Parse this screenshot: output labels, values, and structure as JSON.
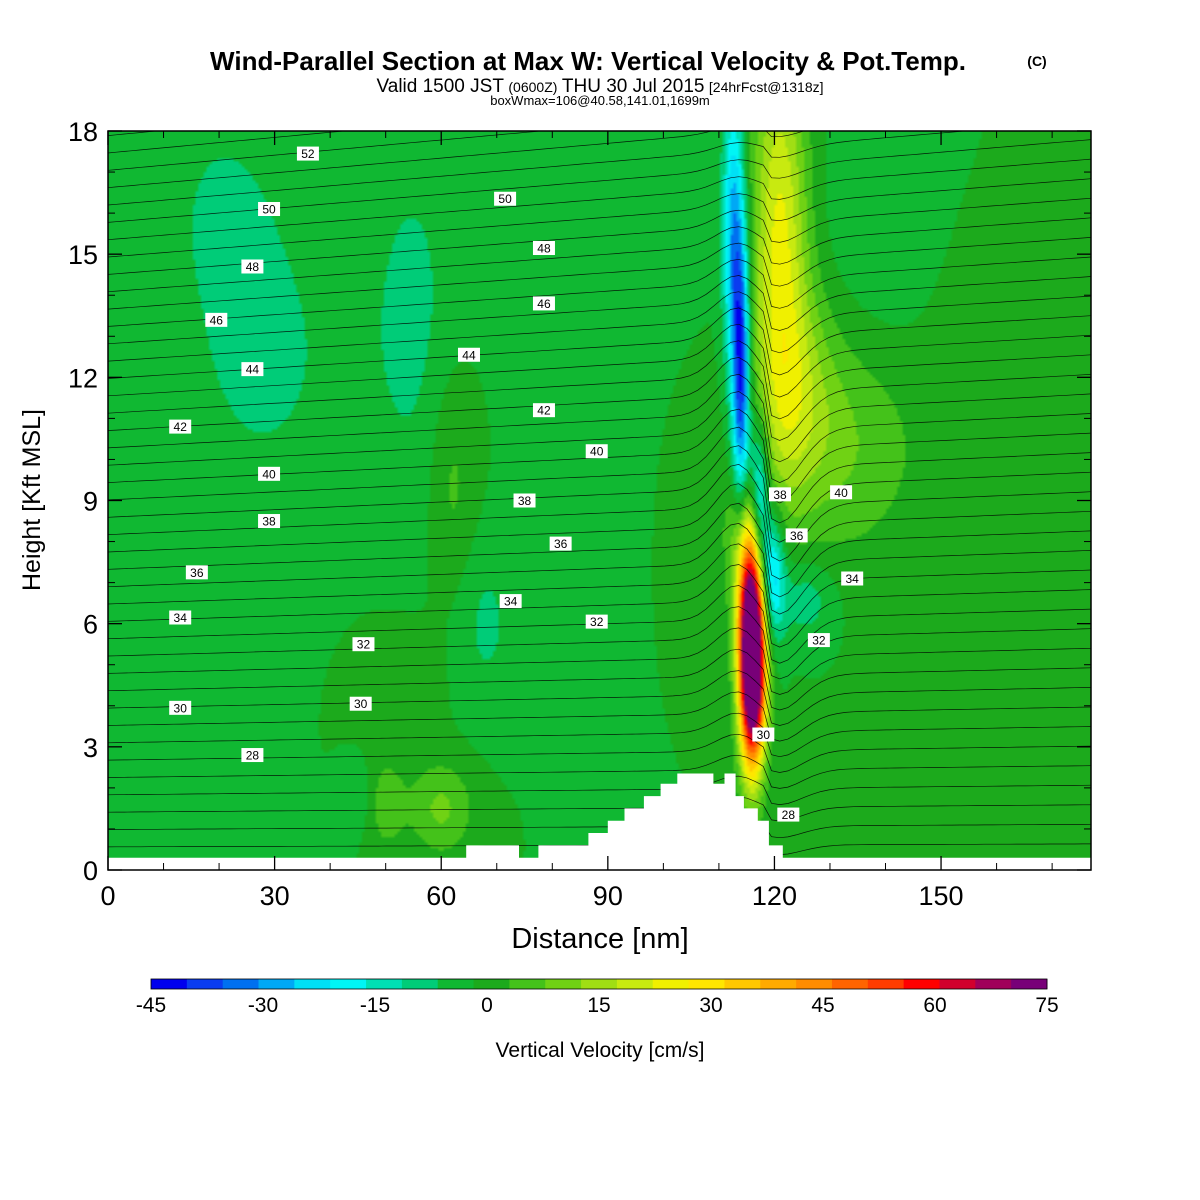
{
  "title": {
    "main": "Wind-Parallel Section at Max W: Vertical Velocity & Pot.Temp.",
    "copyright": "(C)",
    "valid_prefix": "Valid 1500 JST",
    "valid_z": "(0600Z)",
    "valid_date": "THU 30 Jul 2015",
    "forecast": "[24hrFcst@1318z]",
    "box": "boxWmax=106@40.58,141.01,1699m"
  },
  "chart_data": {
    "type": "heatmap",
    "xlabel": "Distance [nm]",
    "ylabel": "Height [Kft MSL]",
    "xlim": [
      0,
      177
    ],
    "ylim": [
      0,
      18
    ],
    "x_ticks": [
      "0",
      "30",
      "60",
      "90",
      "120",
      "150"
    ],
    "y_ticks": [
      "0",
      "3",
      "6",
      "9",
      "12",
      "15",
      "18"
    ],
    "x_tick_values": [
      0,
      30,
      60,
      90,
      120,
      150
    ],
    "y_tick_values": [
      0,
      3,
      6,
      9,
      12,
      15,
      18
    ],
    "colorbar": {
      "label": "Vertical Velocity [cm/s]",
      "tick_labels": [
        "-45",
        "-30",
        "-15",
        "0",
        "15",
        "30",
        "45",
        "60",
        "75"
      ],
      "tick_values": [
        -45,
        -30,
        -15,
        0,
        15,
        30,
        45,
        60,
        75
      ],
      "range": [
        -45,
        75
      ],
      "step": 5,
      "colors": [
        "#0000ee",
        "#0a3cf0",
        "#0070f0",
        "#00a8f5",
        "#00e0f5",
        "#00f5f5",
        "#00e0b4",
        "#00cc78",
        "#10b832",
        "#1caa1c",
        "#44c21a",
        "#70d214",
        "#a0de14",
        "#c8ea10",
        "#f0f000",
        "#ffe600",
        "#ffc800",
        "#ffaa00",
        "#ff8c00",
        "#ff6400",
        "#ff3c00",
        "#ff0000",
        "#d2002d",
        "#a0005a",
        "#780078"
      ]
    },
    "terrain": [
      [
        0,
        0.3
      ],
      [
        64.5,
        0.3
      ],
      [
        64.5,
        0.6
      ],
      [
        74,
        0.6
      ],
      [
        74,
        0.3
      ],
      [
        77.5,
        0.3
      ],
      [
        77.5,
        0.6
      ],
      [
        86.5,
        0.6
      ],
      [
        86.5,
        0.9
      ],
      [
        90,
        0.9
      ],
      [
        90,
        1.2
      ],
      [
        93,
        1.2
      ],
      [
        93,
        1.5
      ],
      [
        96.5,
        1.5
      ],
      [
        96.5,
        1.8
      ],
      [
        99.5,
        1.8
      ],
      [
        99.5,
        2.1
      ],
      [
        102.5,
        2.1
      ],
      [
        102.5,
        2.35
      ],
      [
        109,
        2.35
      ],
      [
        109,
        2.1
      ],
      [
        111,
        2.1
      ],
      [
        111,
        2.35
      ],
      [
        113,
        2.35
      ],
      [
        113,
        1.8
      ],
      [
        114.5,
        1.8
      ],
      [
        114.5,
        1.5
      ],
      [
        117,
        1.5
      ],
      [
        117,
        1.2
      ],
      [
        119,
        1.2
      ],
      [
        119,
        0.6
      ],
      [
        121.5,
        0.6
      ],
      [
        121.5,
        0.3
      ],
      [
        177,
        0.3
      ]
    ],
    "w_field": [
      {
        "x": 116,
        "y": 4.8,
        "sx": 1.6,
        "sy": 1.6,
        "w": 105
      },
      {
        "x": 115.6,
        "y": 6.6,
        "sx": 1.8,
        "sy": 1.3,
        "w": 40
      },
      {
        "x": 115,
        "y": 8.3,
        "sx": 2.2,
        "sy": 1.1,
        "w": 18
      },
      {
        "x": 121,
        "y": 15.5,
        "sx": 3.5,
        "sy": 3.5,
        "w": 26
      },
      {
        "x": 124,
        "y": 11.5,
        "sx": 5,
        "sy": 2,
        "w": 14
      },
      {
        "x": 134,
        "y": 10.5,
        "sx": 8,
        "sy": 2,
        "w": 10
      },
      {
        "x": 114,
        "y": 12,
        "sx": 1.1,
        "sy": 2.6,
        "w": -40
      },
      {
        "x": 112.5,
        "y": 15.5,
        "sx": 1.3,
        "sy": 2.5,
        "w": -26
      },
      {
        "x": 117.2,
        "y": 9,
        "sx": 1.2,
        "sy": 1.3,
        "w": -30
      },
      {
        "x": 119.5,
        "y": 7.2,
        "sx": 1.6,
        "sy": 1.1,
        "w": -26
      },
      {
        "x": 125.5,
        "y": 6.6,
        "sx": 3.5,
        "sy": 0.7,
        "w": -9
      },
      {
        "x": 28,
        "y": 12.5,
        "sx": 12,
        "sy": 3,
        "w": -6
      },
      {
        "x": 55,
        "y": 13.5,
        "sx": 6,
        "sy": 3.5,
        "w": -6
      },
      {
        "x": 90,
        "y": 14,
        "sx": 8,
        "sy": 4,
        "w": -5
      },
      {
        "x": 20,
        "y": 16.5,
        "sx": 8,
        "sy": 2,
        "w": -4
      },
      {
        "x": 140,
        "y": 15,
        "sx": 10,
        "sy": 3,
        "w": -4
      },
      {
        "x": 62,
        "y": 9.5,
        "sx": 3,
        "sy": 2,
        "w": 7
      },
      {
        "x": 60,
        "y": 1.5,
        "sx": 4,
        "sy": 0.8,
        "w": 11
      },
      {
        "x": 50,
        "y": 1.6,
        "sx": 2.5,
        "sy": 0.8,
        "w": 8
      },
      {
        "x": 45,
        "y": 1.8,
        "sx": 2,
        "sy": 0.6,
        "w": -5
      },
      {
        "x": 68,
        "y": 6,
        "sx": 4,
        "sy": 1.5,
        "w": -6
      },
      {
        "x": 52,
        "y": 4.5,
        "sx": 5,
        "sy": 1,
        "w": 4
      },
      {
        "x": 105,
        "y": 9,
        "sx": 4,
        "sy": 2,
        "w": 5
      },
      {
        "x": 155,
        "y": 12,
        "sx": 8,
        "sy": 3,
        "w": 4
      }
    ],
    "contour_labels": [
      {
        "text": "52",
        "x": 36,
        "y": 17.45
      },
      {
        "text": "50",
        "x": 29,
        "y": 16.1
      },
      {
        "text": "50",
        "x": 71.5,
        "y": 16.35
      },
      {
        "text": "48",
        "x": 26,
        "y": 14.7
      },
      {
        "text": "48",
        "x": 78.5,
        "y": 15.15
      },
      {
        "text": "46",
        "x": 19.5,
        "y": 13.4
      },
      {
        "text": "46",
        "x": 78.5,
        "y": 13.8
      },
      {
        "text": "44",
        "x": 26,
        "y": 12.2
      },
      {
        "text": "44",
        "x": 65,
        "y": 12.55
      },
      {
        "text": "42",
        "x": 13,
        "y": 10.8
      },
      {
        "text": "42",
        "x": 78.5,
        "y": 11.2
      },
      {
        "text": "40",
        "x": 29,
        "y": 9.65
      },
      {
        "text": "40",
        "x": 88,
        "y": 10.2
      },
      {
        "text": "40",
        "x": 132,
        "y": 9.2
      },
      {
        "text": "38",
        "x": 29,
        "y": 8.5
      },
      {
        "text": "38",
        "x": 75,
        "y": 9
      },
      {
        "text": "38",
        "x": 121,
        "y": 9.15
      },
      {
        "text": "36",
        "x": 16,
        "y": 7.25
      },
      {
        "text": "36",
        "x": 81.5,
        "y": 7.95
      },
      {
        "text": "36",
        "x": 124,
        "y": 8.15
      },
      {
        "text": "34",
        "x": 13,
        "y": 6.15
      },
      {
        "text": "34",
        "x": 72.5,
        "y": 6.55
      },
      {
        "text": "34",
        "x": 134,
        "y": 7.1
      },
      {
        "text": "32",
        "x": 46,
        "y": 5.5
      },
      {
        "text": "32",
        "x": 88,
        "y": 6.05
      },
      {
        "text": "32",
        "x": 128,
        "y": 5.6
      },
      {
        "text": "30",
        "x": 13,
        "y": 3.95
      },
      {
        "text": "30",
        "x": 45.5,
        "y": 4.05
      },
      {
        "text": "30",
        "x": 118,
        "y": 3.3
      },
      {
        "text": "28",
        "x": 26,
        "y": 2.8
      },
      {
        "text": "28",
        "x": 122.5,
        "y": 1.35
      }
    ]
  }
}
